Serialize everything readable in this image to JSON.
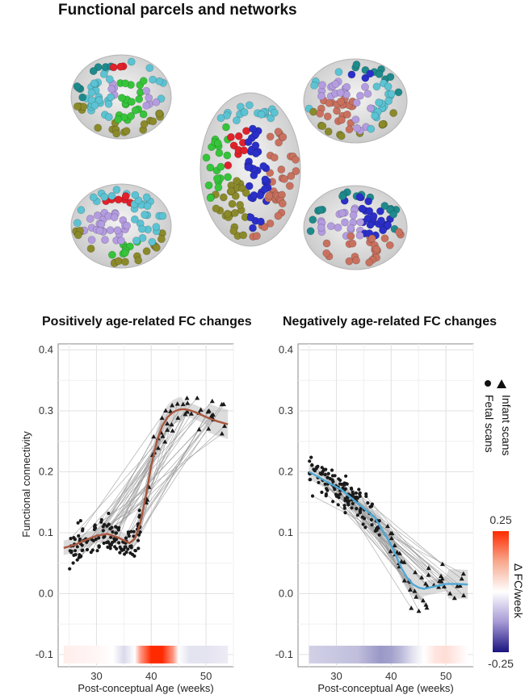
{
  "header": {
    "title": "Functional parcels and networks"
  },
  "network_colors": {
    "cyan": "#5bc3d3",
    "teal": "#1e8a8c",
    "red": "#e0212b",
    "green": "#36c43a",
    "olive": "#8b8a2a",
    "blue": "#2b2fc9",
    "lavender": "#b49ce0",
    "salmon": "#c9715f"
  },
  "legend": {
    "infant": "Infant scans",
    "fetal": "Fetal scans",
    "cb_title": "Δ FC/week",
    "cb_max": "0.25",
    "cb_min": "-0.25"
  },
  "chart_data": [
    {
      "type": "scatter",
      "title": "Positively age-related FC changes",
      "xlabel": "Post-conceptual Age (weeks)",
      "ylabel": "Functional connectivity",
      "xlim": [
        23,
        55
      ],
      "ylim": [
        -0.12,
        0.41
      ],
      "xticks": [
        30,
        40,
        50
      ],
      "yticks": [
        0.0,
        0.1,
        0.2,
        0.3,
        0.4
      ],
      "ytick_labels": [
        "0.0",
        "0.1",
        "0.2",
        "0.3",
        "0.4"
      ],
      "band_label": "-0.1",
      "band_y": -0.1,
      "trend_color": "#a9573f",
      "trend": {
        "x": [
          24,
          26,
          28,
          30,
          32,
          34,
          36,
          37,
          38,
          39,
          40,
          41,
          42,
          43,
          44,
          45,
          46,
          47,
          48,
          50,
          52,
          54
        ],
        "y": [
          0.075,
          0.08,
          0.088,
          0.095,
          0.098,
          0.092,
          0.083,
          0.09,
          0.115,
          0.16,
          0.21,
          0.25,
          0.275,
          0.29,
          0.298,
          0.302,
          0.303,
          0.301,
          0.298,
          0.29,
          0.283,
          0.278
        ]
      },
      "band_gradient": {
        "x": [
          24,
          30,
          33,
          35,
          37,
          38,
          40,
          42,
          44,
          45,
          47,
          50,
          54
        ],
        "delta": [
          0.02,
          0.01,
          0.0,
          -0.04,
          0.0,
          0.12,
          0.25,
          0.25,
          0.12,
          0.0,
          -0.03,
          -0.03,
          -0.02
        ]
      }
    },
    {
      "type": "scatter",
      "title": "Negatively age-related FC changes",
      "xlabel": "Post-conceptual Age (weeks)",
      "ylabel": "",
      "xlim": [
        23,
        55
      ],
      "ylim": [
        -0.12,
        0.41
      ],
      "xticks": [
        30,
        40,
        50
      ],
      "yticks": [
        0.0,
        0.1,
        0.2,
        0.3,
        0.4
      ],
      "ytick_labels": [
        "0.0",
        "0.1",
        "0.2",
        "0.3",
        "0.4"
      ],
      "band_label": "-0.1",
      "band_y": -0.1,
      "trend_color": "#4ea8d6",
      "trend": {
        "x": [
          25,
          27,
          29,
          31,
          33,
          35,
          37,
          38,
          40,
          41,
          42,
          43,
          44,
          45,
          46,
          48,
          50,
          52,
          54
        ],
        "y": [
          0.2,
          0.19,
          0.18,
          0.17,
          0.155,
          0.14,
          0.125,
          0.11,
          0.08,
          0.06,
          0.04,
          0.025,
          0.015,
          0.01,
          0.008,
          0.012,
          0.016,
          0.016,
          0.015
        ]
      },
      "band_gradient": {
        "x": [
          25,
          30,
          34,
          36,
          38,
          40,
          42,
          44,
          46,
          48,
          50,
          54
        ],
        "delta": [
          -0.05,
          -0.06,
          -0.07,
          -0.09,
          -0.11,
          -0.1,
          -0.07,
          -0.03,
          0.0,
          0.03,
          0.04,
          0.0
        ]
      }
    }
  ]
}
